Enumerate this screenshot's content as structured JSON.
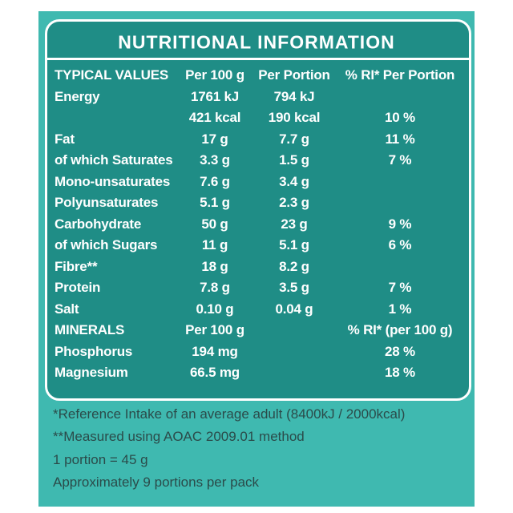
{
  "title": "NUTRITIONAL INFORMATION",
  "table": {
    "rows": [
      {
        "label": "TYPICAL VALUES",
        "per_100g": "Per 100 g",
        "per_portion": "Per Portion",
        "ri": "% RI* Per Portion"
      },
      {
        "label": "Energy",
        "per_100g": "1761 kJ",
        "per_portion": "794 kJ"
      },
      {
        "per_100g": "421 kcal",
        "per_portion": "190 kcal",
        "ri": "10 %"
      },
      {
        "label": "Fat",
        "per_100g": "17 g",
        "per_portion": "7.7 g",
        "ri": "11 %"
      },
      {
        "label": "of which Saturates",
        "per_100g": "3.3 g",
        "per_portion": "1.5 g",
        "ri": "7 %"
      },
      {
        "label": "Mono-unsaturates",
        "per_100g": "7.6 g",
        "per_portion": "3.4 g"
      },
      {
        "label": "Polyunsaturates",
        "per_100g": "5.1 g",
        "per_portion": "2.3 g"
      },
      {
        "label": "Carbohydrate",
        "per_100g": "50 g",
        "per_portion": "23 g",
        "ri": "9 %"
      },
      {
        "label": "of which Sugars",
        "per_100g": "11 g",
        "per_portion": "5.1 g",
        "ri": "6 %"
      },
      {
        "label": "Fibre**",
        "per_100g": "18 g",
        "per_portion": "8.2 g"
      },
      {
        "label": "Protein",
        "per_100g": "7.8 g",
        "per_portion": "3.5 g",
        "ri": "7 %"
      },
      {
        "label": "Salt",
        "per_100g": "0.10 g",
        "per_portion": "0.04 g",
        "ri": "1 %"
      },
      {
        "label": "MINERALS",
        "per_100g": "Per 100 g",
        "ri": "% RI* (per 100 g)"
      },
      {
        "label": "Phosphorus",
        "per_100g": "194 mg",
        "ri": "28 %"
      },
      {
        "label": "Magnesium",
        "per_100g": "66.5 mg",
        "ri": "18 %"
      }
    ]
  },
  "footnotes": [
    "*Reference Intake of an average adult (8400kJ / 2000kcal)",
    "**Measured using AOAC 2009.01 method",
    "1 portion = 45 g",
    "Approximately 9 portions per pack"
  ]
}
